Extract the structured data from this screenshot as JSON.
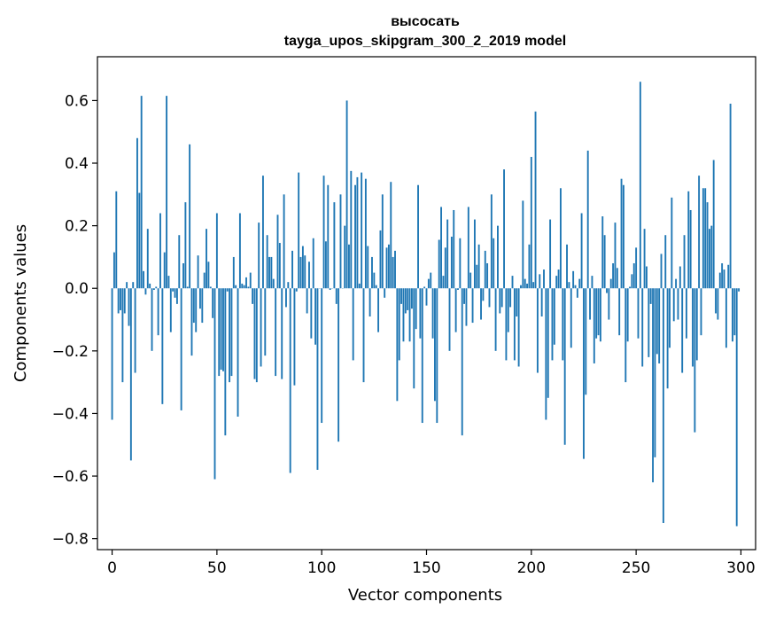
{
  "chart_data": {
    "type": "bar",
    "title": "высосать",
    "subtitle": "tayga_upos_skipgram_300_2_2019 model",
    "xlabel": "Vector components",
    "ylabel": "Components values",
    "xlim": [
      -7,
      307
    ],
    "ylim": [
      -0.835,
      0.74
    ],
    "xticks": [
      0,
      50,
      100,
      150,
      200,
      250,
      300
    ],
    "yticks": [
      -0.8,
      -0.6,
      -0.4,
      -0.2,
      0.0,
      0.2,
      0.4,
      0.6
    ],
    "ytick_labels": [
      "−0.8",
      "−0.6",
      "−0.4",
      "−0.2",
      "0.0",
      "0.2",
      "0.4",
      "0.6"
    ],
    "bar_color": "#1f77b4",
    "grid": false,
    "values": [
      -0.42,
      0.115,
      0.31,
      -0.08,
      -0.07,
      -0.3,
      -0.08,
      0.02,
      -0.12,
      -0.55,
      0.02,
      -0.27,
      0.48,
      0.305,
      0.615,
      0.055,
      -0.02,
      0.19,
      0.015,
      -0.2,
      -0.005,
      0.005,
      -0.15,
      0.24,
      -0.37,
      0.115,
      0.615,
      0.04,
      -0.14,
      -0.01,
      -0.03,
      -0.05,
      0.17,
      -0.39,
      0.08,
      0.275,
      0.005,
      0.46,
      -0.215,
      -0.11,
      -0.14,
      0.105,
      -0.065,
      -0.11,
      0.05,
      0.19,
      0.085,
      0.005,
      -0.095,
      -0.61,
      0.24,
      -0.28,
      -0.26,
      -0.265,
      -0.47,
      -0.01,
      -0.3,
      -0.28,
      0.1,
      0.01,
      -0.41,
      0.24,
      0.015,
      0.01,
      0.035,
      0.005,
      0.05,
      -0.05,
      -0.29,
      -0.3,
      0.21,
      -0.25,
      0.36,
      -0.215,
      0.17,
      0.1,
      0.1,
      0.03,
      -0.28,
      0.235,
      0.145,
      -0.29,
      0.3,
      -0.06,
      0.02,
      -0.59,
      0.12,
      -0.31,
      -0.01,
      0.37,
      0.1,
      0.135,
      0.105,
      -0.08,
      0.085,
      -0.16,
      0.16,
      -0.18,
      -0.58,
      0.0,
      -0.43,
      0.36,
      0.15,
      0.33,
      -0.005,
      0.0,
      0.275,
      -0.05,
      -0.49,
      0.3,
      0.0,
      0.2,
      0.6,
      0.14,
      0.375,
      -0.23,
      0.33,
      0.355,
      0.015,
      0.37,
      -0.3,
      0.35,
      0.135,
      -0.09,
      0.1,
      0.05,
      0.01,
      -0.14,
      0.185,
      0.3,
      -0.03,
      0.13,
      0.14,
      0.34,
      0.1,
      0.12,
      -0.36,
      -0.23,
      -0.05,
      -0.17,
      -0.08,
      -0.07,
      -0.17,
      -0.065,
      -0.32,
      -0.13,
      0.33,
      -0.16,
      -0.43,
      0.005,
      -0.055,
      0.03,
      0.05,
      -0.16,
      -0.36,
      -0.43,
      0.155,
      0.26,
      0.04,
      0.13,
      0.22,
      -0.2,
      0.165,
      0.25,
      -0.14,
      -0.005,
      0.16,
      -0.47,
      -0.05,
      -0.12,
      0.26,
      0.05,
      -0.11,
      0.22,
      0.075,
      0.14,
      -0.1,
      -0.04,
      0.12,
      0.08,
      -0.06,
      0.3,
      0.16,
      -0.2,
      0.2,
      -0.08,
      -0.06,
      0.38,
      -0.23,
      -0.14,
      -0.06,
      0.04,
      -0.23,
      -0.09,
      -0.25,
      0.01,
      0.28,
      0.03,
      0.015,
      0.14,
      0.42,
      0.02,
      0.565,
      -0.27,
      0.045,
      -0.09,
      0.06,
      -0.42,
      -0.35,
      0.22,
      -0.23,
      -0.18,
      0.04,
      0.06,
      0.32,
      -0.23,
      -0.5,
      0.14,
      0.02,
      -0.19,
      0.055,
      0.01,
      -0.03,
      0.03,
      0.24,
      -0.545,
      -0.34,
      0.44,
      -0.1,
      0.04,
      -0.24,
      -0.16,
      -0.15,
      -0.17,
      0.23,
      0.17,
      -0.015,
      -0.1,
      0.03,
      0.08,
      0.21,
      0.065,
      -0.15,
      0.35,
      0.33,
      -0.3,
      -0.17,
      0.005,
      0.045,
      0.08,
      0.13,
      -0.16,
      0.66,
      -0.25,
      0.19,
      0.07,
      -0.22,
      -0.05,
      -0.62,
      -0.54,
      -0.21,
      -0.24,
      0.11,
      -0.75,
      0.17,
      -0.32,
      -0.19,
      0.29,
      -0.105,
      0.03,
      -0.1,
      0.07,
      -0.27,
      0.17,
      -0.16,
      0.31,
      0.25,
      -0.25,
      -0.46,
      -0.23,
      0.36,
      -0.15,
      0.32,
      0.32,
      0.275,
      0.19,
      0.2,
      0.41,
      -0.08,
      -0.1,
      0.05,
      0.08,
      0.06,
      -0.19,
      0.075,
      0.59,
      -0.17,
      -0.15,
      -0.76,
      -0.01
    ]
  }
}
